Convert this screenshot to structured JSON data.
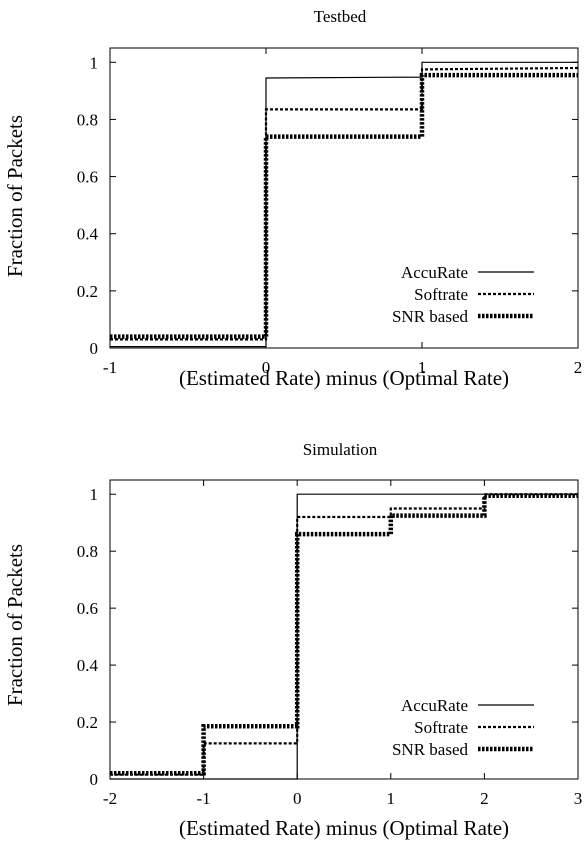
{
  "chart_data": [
    {
      "type": "line",
      "title": "Testbed",
      "xlabel": "(Estimated Rate) minus (Optimal Rate)",
      "ylabel": "Fraction of Packets",
      "xlim": [
        -1,
        2
      ],
      "ylim": [
        0,
        1.05
      ],
      "xticks": [
        "-1",
        "0",
        "1",
        "2"
      ],
      "yticks": [
        "0",
        "0.2",
        "0.4",
        "0.6",
        "0.8",
        "1"
      ],
      "legend_position": "bottom-right",
      "series": [
        {
          "name": "AccuRate",
          "style": "solid",
          "x": [
            -1,
            0,
            0,
            1,
            1,
            2
          ],
          "y": [
            0.005,
            0.005,
            0.945,
            0.948,
            1.0,
            1.0
          ]
        },
        {
          "name": "Softrate",
          "style": "dotted",
          "x": [
            -1,
            0,
            0,
            1,
            1,
            2
          ],
          "y": [
            0.03,
            0.03,
            0.835,
            0.835,
            0.975,
            0.98
          ]
        },
        {
          "name": "SNR based",
          "style": "thick-dotted",
          "x": [
            -1,
            0,
            0,
            1,
            1,
            2
          ],
          "y": [
            0.04,
            0.04,
            0.74,
            0.74,
            0.955,
            0.955
          ]
        }
      ]
    },
    {
      "type": "line",
      "title": "Simulation",
      "xlabel": "(Estimated Rate) minus (Optimal Rate)",
      "ylabel": "Fraction of Packets",
      "xlim": [
        -2,
        3
      ],
      "ylim": [
        0,
        1.05
      ],
      "xticks": [
        "-2",
        "-1",
        "0",
        "1",
        "2",
        "3"
      ],
      "yticks": [
        "0",
        "0.2",
        "0.4",
        "0.6",
        "0.8",
        "1"
      ],
      "legend_position": "bottom-right",
      "series": [
        {
          "name": "AccuRate",
          "style": "solid",
          "x": [
            -2,
            0,
            0,
            3
          ],
          "y": [
            0.0,
            0.0,
            1.0,
            1.0
          ]
        },
        {
          "name": "Softrate",
          "style": "dotted",
          "x": [
            -2,
            -1,
            -1,
            0,
            0,
            1,
            1,
            2,
            2,
            3
          ],
          "y": [
            0.015,
            0.015,
            0.125,
            0.125,
            0.92,
            0.92,
            0.95,
            0.95,
            1.0,
            1.0
          ]
        },
        {
          "name": "SNR based",
          "style": "thick-dotted",
          "x": [
            -2,
            -1,
            -1,
            0,
            0,
            1,
            1,
            2,
            2,
            3
          ],
          "y": [
            0.02,
            0.02,
            0.185,
            0.185,
            0.86,
            0.86,
            0.925,
            0.925,
            0.995,
            0.995
          ]
        }
      ]
    }
  ]
}
